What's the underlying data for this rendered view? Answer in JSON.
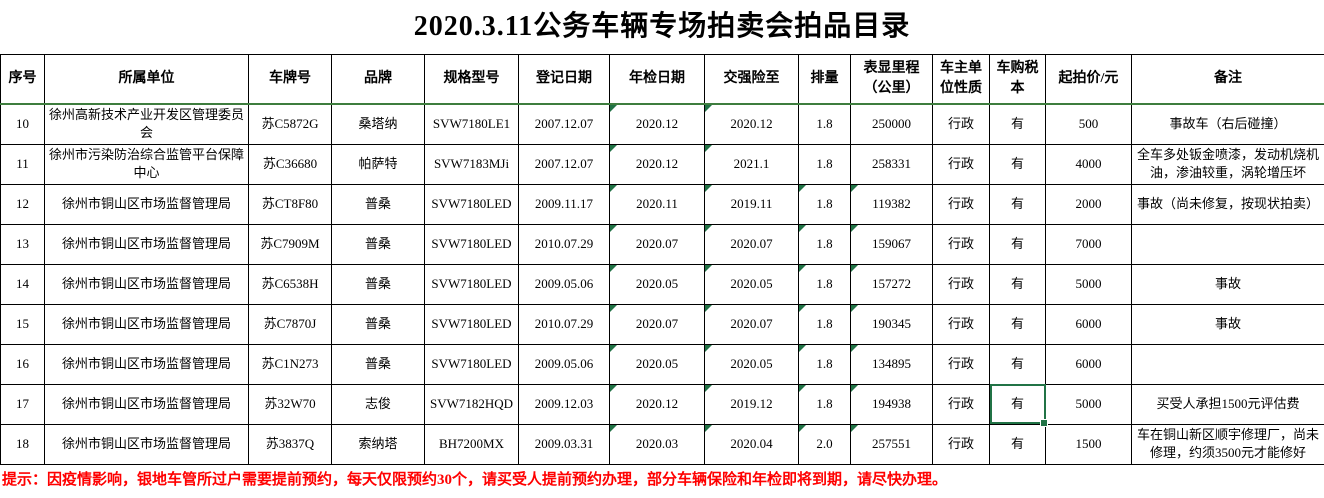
{
  "title": "2020.3.11公务车辆专场拍卖会拍品目录",
  "columns": [
    "序号",
    "所属单位",
    "车牌号",
    "品牌",
    "规格型号",
    "登记日期",
    "年检日期",
    "交强险至",
    "排量",
    "表显里程（公里）",
    "车主单位性质",
    "车购税本",
    "起拍价/元",
    "备注"
  ],
  "rows": [
    {
      "cells": [
        "10",
        "徐州高新技术产业开发区管理委员会",
        "苏C5872G",
        "桑塔纳",
        "SVW7180LE1",
        "2007.12.07",
        "2020.12",
        "2020.12",
        "1.8",
        "250000",
        "行政",
        "有",
        "500",
        "事故车（右后碰撞）"
      ],
      "tri": [
        6,
        7
      ]
    },
    {
      "cells": [
        "11",
        "徐州市污染防治综合监管平台保障中心",
        "苏C36680",
        "帕萨特",
        "SVW7183MJi",
        "2007.12.07",
        "2020.12",
        "2021.1",
        "1.8",
        "258331",
        "行政",
        "有",
        "4000",
        "全车多处钣金喷漆，发动机烧机油，渗油较重，涡轮增压坏"
      ],
      "tri": [
        6,
        7
      ]
    },
    {
      "cells": [
        "12",
        "徐州市铜山区市场监督管理局",
        "苏CT8F80",
        "普桑",
        "SVW7180LED",
        "2009.11.17",
        "2020.11",
        "2019.11",
        "1.8",
        "119382",
        "行政",
        "有",
        "2000",
        "事故（尚未修复，按现状拍卖）"
      ],
      "tri": [
        6,
        7,
        8,
        9
      ]
    },
    {
      "cells": [
        "13",
        "徐州市铜山区市场监督管理局",
        "苏C7909M",
        "普桑",
        "SVW7180LED",
        "2010.07.29",
        "2020.07",
        "2020.07",
        "1.8",
        "159067",
        "行政",
        "有",
        "7000",
        ""
      ],
      "tri": [
        6,
        7,
        8,
        9
      ]
    },
    {
      "cells": [
        "14",
        "徐州市铜山区市场监督管理局",
        "苏C6538H",
        "普桑",
        "SVW7180LED",
        "2009.05.06",
        "2020.05",
        "2020.05",
        "1.8",
        "157272",
        "行政",
        "有",
        "5000",
        "事故"
      ],
      "tri": [
        6,
        7,
        8,
        9
      ]
    },
    {
      "cells": [
        "15",
        "徐州市铜山区市场监督管理局",
        "苏C7870J",
        "普桑",
        "SVW7180LED",
        "2010.07.29",
        "2020.07",
        "2020.07",
        "1.8",
        "190345",
        "行政",
        "有",
        "6000",
        "事故"
      ],
      "tri": [
        6,
        7,
        8,
        9
      ]
    },
    {
      "cells": [
        "16",
        "徐州市铜山区市场监督管理局",
        "苏C1N273",
        "普桑",
        "SVW7180LED",
        "2009.05.06",
        "2020.05",
        "2020.05",
        "1.8",
        "134895",
        "行政",
        "有",
        "6000",
        ""
      ],
      "tri": [
        6,
        7,
        8,
        9
      ]
    },
    {
      "cells": [
        "17",
        "徐州市铜山区市场监督管理局",
        "苏32W70",
        "志俊",
        "SVW7182HQD",
        "2009.12.03",
        "2020.12",
        "2019.12",
        "1.8",
        "194938",
        "行政",
        "有",
        "5000",
        "买受人承担1500元评估费"
      ],
      "tri": [
        6,
        7,
        8,
        9
      ],
      "selected": 11
    },
    {
      "cells": [
        "18",
        "徐州市铜山区市场监督管理局",
        "苏3837Q",
        "索纳塔",
        "BH7200MX",
        "2009.03.31",
        "2020.03",
        "2020.04",
        "2.0",
        "257551",
        "行政",
        "有",
        "1500",
        "车在铜山新区顺宇修理厂，尚未修理，约须3500元才能修好"
      ],
      "tri": [
        6,
        7,
        8,
        9
      ]
    }
  ],
  "selected_cell": {
    "row": "17",
    "column": "车购税本",
    "value": "有"
  },
  "footer_note": "提示：因疫情影响，银地车管所过户需要提前预约，每天仅限预约30个，请买受人提前预约办理，部分车辆保险和年检即将到期，请尽快办理。",
  "colors": {
    "grid": "#000000",
    "selection_green": "#217346",
    "freeze_line_green": "#3e7d3e",
    "note_red": "#ff0000",
    "background": "#ffffff",
    "text": "#000000"
  }
}
